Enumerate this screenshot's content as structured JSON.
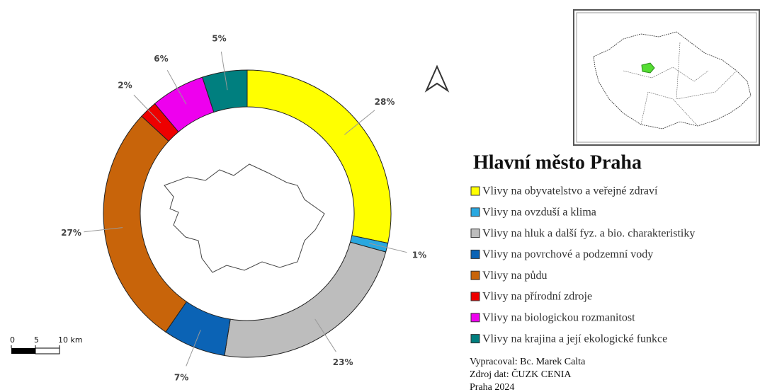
{
  "chart_data": {
    "type": "donut",
    "title": "Hlavní město Praha",
    "categories": [
      "Vlivy na obyvatelstvo a veřejné zdraví",
      "Vlivy na ovzduší a klima",
      "Vlivy na hluk a další fyz. a bio. charakteristiky",
      "Vlivy na povrchové a podzemní vody",
      "Vlivy na půdu",
      "Vlivy na přírodní zdroje",
      "Vlivy na biologickou rozmanitost",
      "Vlivy na krajina a její ekologické funkce"
    ],
    "values": [
      28,
      1,
      23,
      7,
      27,
      2,
      6,
      5
    ],
    "value_labels": [
      "28%",
      "1%",
      "23%",
      "7%",
      "27%",
      "2%",
      "6%",
      "5%"
    ],
    "colors": [
      "#ffff00",
      "#29a8e0",
      "#bdbdbd",
      "#0b63b5",
      "#c8640a",
      "#ee0000",
      "#ee00ee",
      "#007f7f"
    ],
    "credits": [
      "Vypracoval: Bc. Marek Calta",
      "Zdroj dat: ČUZK CENIA",
      "Praha 2024"
    ],
    "scale_bar": [
      0,
      5,
      {
        "value": 10,
        "label": "10 km"
      }
    ]
  }
}
